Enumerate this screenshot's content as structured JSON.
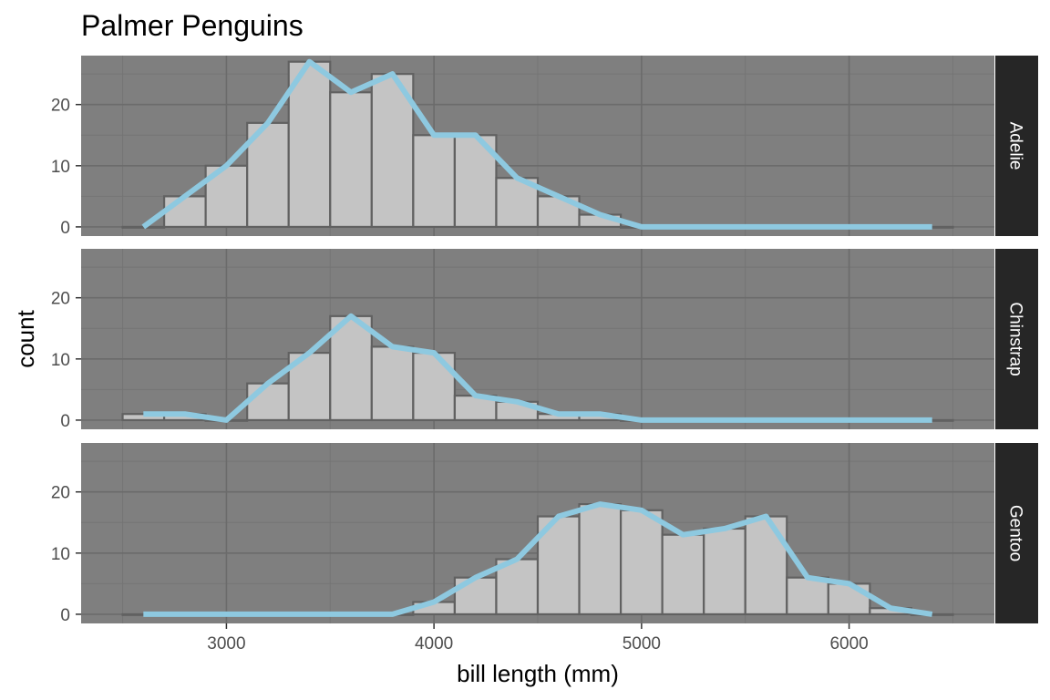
{
  "chart_data": {
    "type": "bar",
    "title": "Palmer Penguins",
    "xlabel": "bill length (mm)",
    "ylabel": "count",
    "xlim": [
      2300,
      6700
    ],
    "ylim": [
      -1.5,
      28
    ],
    "x_ticks": [
      3000,
      4000,
      5000,
      6000
    ],
    "x_minor_ticks": [
      2500,
      3500,
      4500,
      5500,
      6500
    ],
    "y_ticks": [
      0,
      10,
      20
    ],
    "y_minor_ticks": [
      5,
      15,
      25
    ],
    "bin_width": 200,
    "bin_centers": [
      2600,
      2800,
      3000,
      3200,
      3400,
      3600,
      3800,
      4000,
      4200,
      4400,
      4600,
      4800,
      5000,
      5200,
      5400,
      5600,
      5800,
      6000,
      6200,
      6400
    ],
    "grid": true,
    "colors": {
      "panel_background": "#7f7f7f",
      "grid_major": "#6b6b6b",
      "grid_minor": "#757575",
      "bar_fill": "#c4c4c4",
      "bar_stroke": "#616161",
      "frequency_line": "#8ec9e0",
      "strip_background": "#262626",
      "strip_text": "#ffffff"
    },
    "panels": [
      {
        "name": "Adelie",
        "values": [
          0,
          5,
          10,
          17,
          27,
          22,
          25,
          15,
          15,
          8,
          5,
          2,
          0,
          0,
          0,
          0,
          0,
          0,
          0,
          0
        ]
      },
      {
        "name": "Chinstrap",
        "values": [
          1,
          1,
          0,
          6,
          11,
          17,
          12,
          11,
          4,
          3,
          1,
          1,
          0,
          0,
          0,
          0,
          0,
          0,
          0,
          0
        ]
      },
      {
        "name": "Gentoo",
        "values": [
          0,
          0,
          0,
          0,
          0,
          0,
          0,
          2,
          6,
          9,
          16,
          18,
          17,
          13,
          14,
          16,
          6,
          5,
          1,
          0
        ]
      }
    ]
  }
}
